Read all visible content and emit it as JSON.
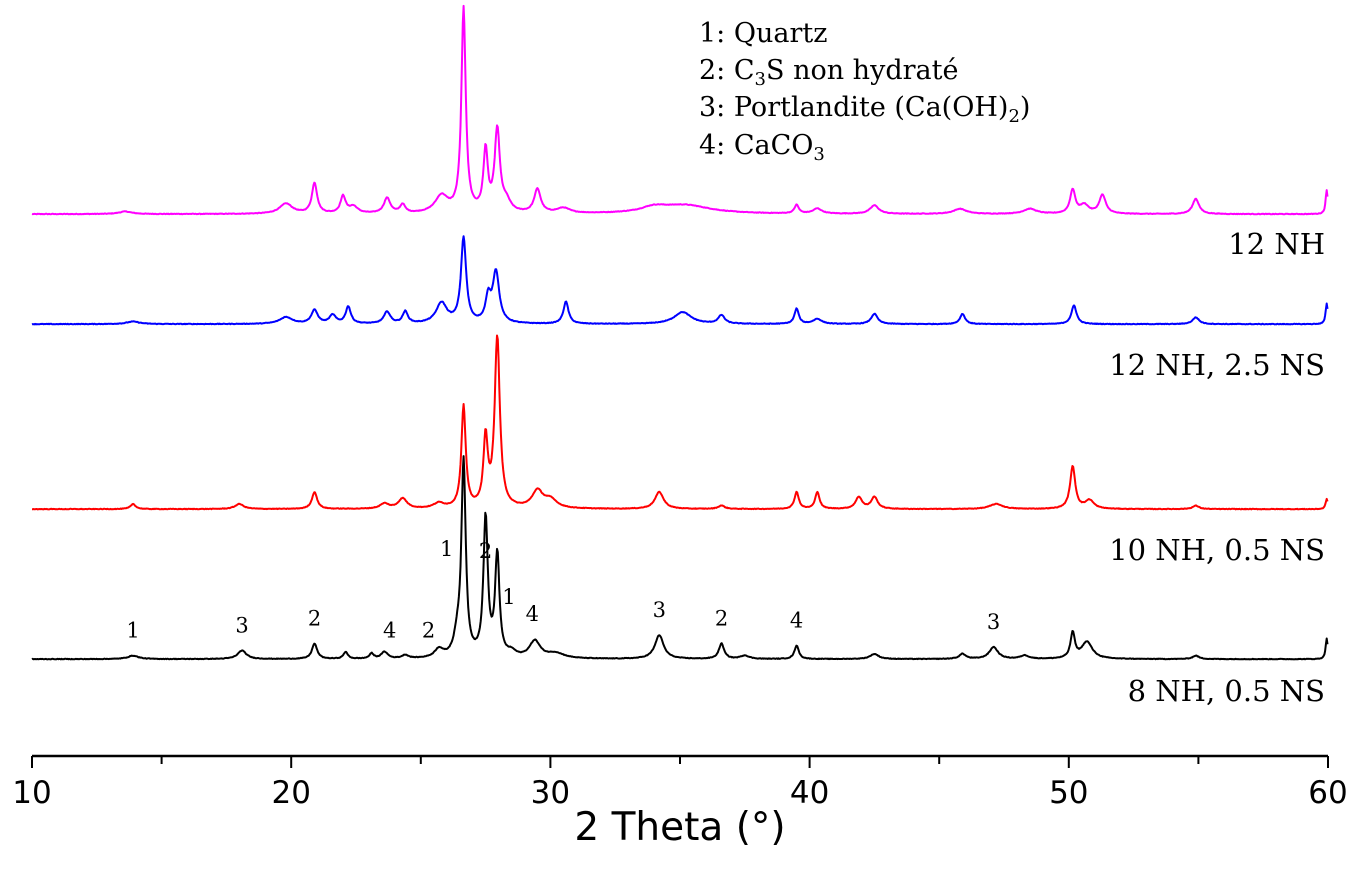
{
  "chart_data": {
    "type": "line",
    "xlabel": "2 Theta (°)",
    "ylabel": "",
    "xlim": [
      10,
      60
    ],
    "xticks": [
      "10",
      "20",
      "30",
      "40",
      "50",
      "60"
    ],
    "grid": false,
    "legend": {
      "placement": "top-center",
      "items": [
        {
          "num": "1",
          "text": "Quartz"
        },
        {
          "num": "2",
          "pre": "C",
          "sub": "3",
          "post": "S non hydraté"
        },
        {
          "num": "3",
          "pre": "Portlandite (Ca(OH)",
          "sub": "2",
          "post": ")"
        },
        {
          "num": "4",
          "pre": "CaCO",
          "sub": "3",
          "post": ""
        }
      ]
    },
    "series": [
      {
        "name": "12 NH",
        "color": "#ff00ff",
        "baseline": 0.5,
        "noise": 0.35,
        "peaks": [
          [
            13.6,
            1.5,
            0.3
          ],
          [
            19.8,
            6,
            0.3
          ],
          [
            20.9,
            18,
            0.12
          ],
          [
            22.0,
            10,
            0.12
          ],
          [
            22.4,
            4,
            0.2
          ],
          [
            23.7,
            9,
            0.15
          ],
          [
            24.3,
            5,
            0.12
          ],
          [
            25.8,
            10,
            0.3
          ],
          [
            26.65,
            120,
            0.1
          ],
          [
            27.5,
            36,
            0.1
          ],
          [
            27.95,
            48,
            0.12
          ],
          [
            28.3,
            6,
            0.2
          ],
          [
            29.5,
            14,
            0.15
          ],
          [
            30.5,
            3,
            0.3
          ],
          [
            34.0,
            3,
            0.6
          ],
          [
            35.2,
            5,
            1.2
          ],
          [
            39.5,
            5,
            0.1
          ],
          [
            40.3,
            3,
            0.2
          ],
          [
            42.5,
            5,
            0.2
          ],
          [
            45.8,
            3,
            0.3
          ],
          [
            48.5,
            3,
            0.3
          ],
          [
            50.15,
            14,
            0.12
          ],
          [
            50.6,
            5,
            0.2
          ],
          [
            51.3,
            11,
            0.15
          ],
          [
            54.9,
            9,
            0.15
          ],
          [
            59.95,
            14,
            0.05
          ]
        ]
      },
      {
        "name": "12 NH, 2.5 NS",
        "color": "#0000ff",
        "baseline": 0.5,
        "noise": 0.35,
        "peaks": [
          [
            13.9,
            1.5,
            0.3
          ],
          [
            19.8,
            4,
            0.3
          ],
          [
            20.9,
            8,
            0.15
          ],
          [
            21.6,
            5,
            0.15
          ],
          [
            22.2,
            10,
            0.12
          ],
          [
            23.7,
            7,
            0.15
          ],
          [
            24.4,
            7,
            0.12
          ],
          [
            25.8,
            12,
            0.25
          ],
          [
            26.65,
            50,
            0.12
          ],
          [
            27.6,
            14,
            0.12
          ],
          [
            27.9,
            30,
            0.15
          ],
          [
            30.6,
            13,
            0.12
          ],
          [
            35.1,
            7,
            0.4
          ],
          [
            36.6,
            5,
            0.15
          ],
          [
            39.5,
            9,
            0.1
          ],
          [
            40.3,
            3,
            0.2
          ],
          [
            42.5,
            6,
            0.15
          ],
          [
            45.9,
            6,
            0.12
          ],
          [
            50.2,
            11,
            0.12
          ],
          [
            54.9,
            4,
            0.15
          ],
          [
            59.95,
            12,
            0.05
          ]
        ]
      },
      {
        "name": "10 NH, 0.5 NS",
        "color": "#ff0000",
        "baseline": 0.5,
        "noise": 0.35,
        "peaks": [
          [
            13.9,
            3,
            0.12
          ],
          [
            18.0,
            3,
            0.2
          ],
          [
            20.9,
            10,
            0.12
          ],
          [
            23.6,
            3,
            0.2
          ],
          [
            24.3,
            6,
            0.2
          ],
          [
            25.7,
            3,
            0.25
          ],
          [
            26.65,
            60,
            0.1
          ],
          [
            27.5,
            40,
            0.1
          ],
          [
            27.95,
            100,
            0.12
          ],
          [
            29.5,
            10,
            0.25
          ],
          [
            30.0,
            5,
            0.3
          ],
          [
            34.2,
            10,
            0.2
          ],
          [
            36.6,
            2,
            0.15
          ],
          [
            39.5,
            10,
            0.1
          ],
          [
            40.3,
            10,
            0.1
          ],
          [
            41.9,
            7,
            0.15
          ],
          [
            42.5,
            7,
            0.15
          ],
          [
            47.2,
            3,
            0.3
          ],
          [
            50.15,
            25,
            0.12
          ],
          [
            50.8,
            5,
            0.2
          ],
          [
            54.9,
            2,
            0.15
          ],
          [
            59.95,
            6,
            0.05
          ]
        ]
      },
      {
        "name": "8 NH, 0.5 NS",
        "color": "#000000",
        "baseline": 0.5,
        "noise": 0.35,
        "peaks": [
          [
            13.9,
            2,
            0.25
          ],
          [
            18.1,
            5,
            0.2
          ],
          [
            20.9,
            9,
            0.12
          ],
          [
            22.1,
            4,
            0.1
          ],
          [
            23.1,
            3,
            0.1
          ],
          [
            23.6,
            4,
            0.15
          ],
          [
            24.4,
            2,
            0.15
          ],
          [
            25.7,
            5,
            0.2
          ],
          [
            26.4,
            10,
            0.15
          ],
          [
            26.65,
            115,
            0.1
          ],
          [
            27.5,
            82,
            0.1
          ],
          [
            27.95,
            60,
            0.1
          ],
          [
            28.5,
            3,
            0.2
          ],
          [
            29.4,
            10,
            0.25
          ],
          [
            30.2,
            3,
            0.4
          ],
          [
            34.2,
            14,
            0.2
          ],
          [
            36.6,
            9,
            0.12
          ],
          [
            37.5,
            2,
            0.2
          ],
          [
            39.5,
            8,
            0.1
          ],
          [
            42.5,
            3,
            0.2
          ],
          [
            45.9,
            3,
            0.15
          ],
          [
            47.1,
            7,
            0.2
          ],
          [
            48.3,
            2,
            0.2
          ],
          [
            50.15,
            15,
            0.1
          ],
          [
            50.7,
            10,
            0.25
          ],
          [
            54.9,
            2,
            0.15
          ],
          [
            59.95,
            12,
            0.05
          ]
        ]
      }
    ],
    "peak_labels": [
      {
        "x": 13.9,
        "label": "1"
      },
      {
        "x": 18.1,
        "label": "3"
      },
      {
        "x": 20.9,
        "label": "2"
      },
      {
        "x": 23.8,
        "label": "4"
      },
      {
        "x": 25.3,
        "label": "2"
      },
      {
        "x": 26.0,
        "label": "1"
      },
      {
        "x": 27.5,
        "label": "2"
      },
      {
        "x": 28.4,
        "label": "1"
      },
      {
        "x": 29.3,
        "label": "4"
      },
      {
        "x": 34.2,
        "label": "3"
      },
      {
        "x": 36.6,
        "label": "2"
      },
      {
        "x": 39.5,
        "label": "4"
      },
      {
        "x": 47.1,
        "label": "3"
      }
    ]
  }
}
